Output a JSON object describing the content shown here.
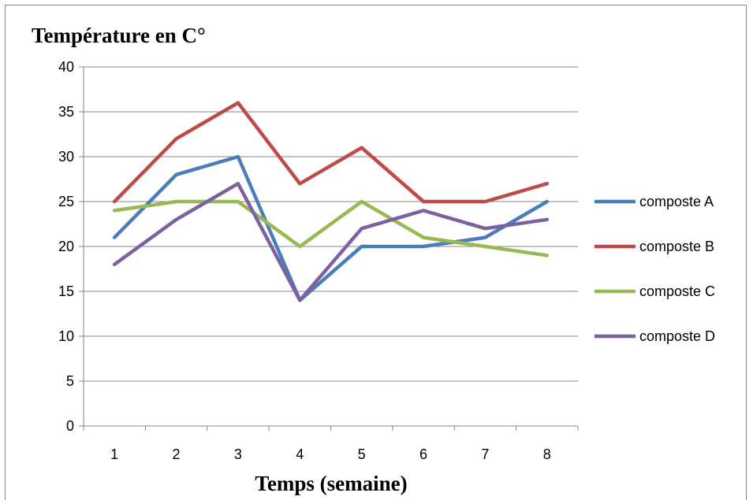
{
  "chart_data": {
    "type": "line",
    "title": "Température en C°",
    "xlabel": "Temps (semaine)",
    "ylabel": "",
    "categories": [
      "1",
      "2",
      "3",
      "4",
      "5",
      "6",
      "7",
      "8"
    ],
    "ylim": [
      0,
      40
    ],
    "yticks": [
      0,
      5,
      10,
      15,
      20,
      25,
      30,
      35,
      40
    ],
    "grid": "horizontal",
    "legend_position": "right",
    "series": [
      {
        "name": "composte A",
        "color": "#4A7EBB",
        "values": [
          21,
          28,
          30,
          14,
          20,
          20,
          21,
          25
        ]
      },
      {
        "name": "composte B",
        "color": "#BE4B48",
        "values": [
          25,
          32,
          36,
          27,
          31,
          25,
          25,
          27
        ]
      },
      {
        "name": "composte C",
        "color": "#98B954",
        "values": [
          24,
          25,
          25,
          20,
          25,
          21,
          20,
          19
        ]
      },
      {
        "name": "composte D",
        "color": "#7D60A0",
        "values": [
          18,
          23,
          27,
          14,
          22,
          24,
          22,
          23
        ]
      }
    ]
  }
}
